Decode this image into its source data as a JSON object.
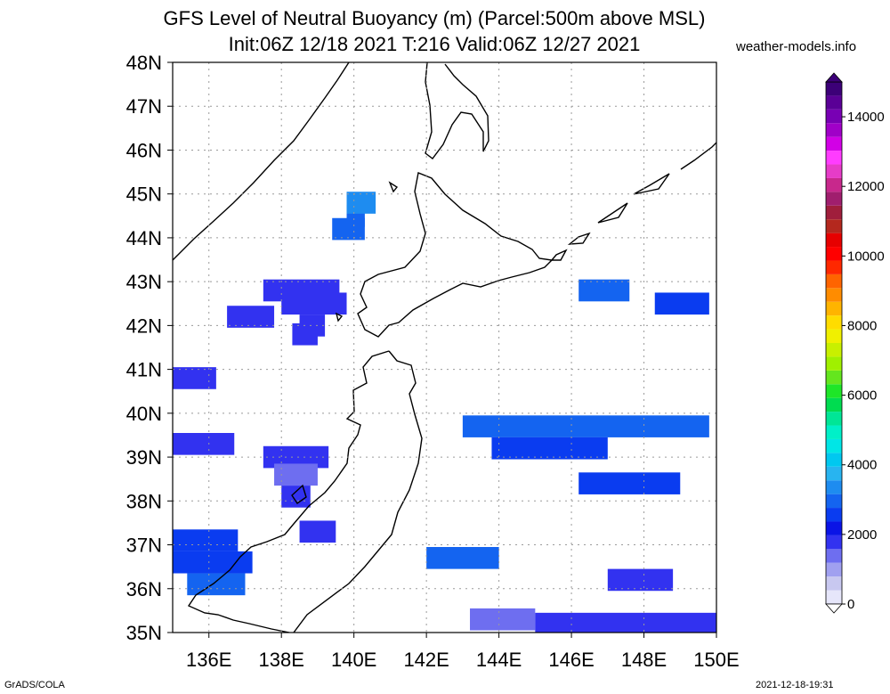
{
  "header": {
    "title_line1": "GFS Level of Neutral Buoyancy (m) (Parcel:500m above MSL)",
    "title_line2": "Init:06Z 12/18 2021 T:216 Valid:06Z 12/27 2021",
    "site": "weather-models.info"
  },
  "footer": {
    "left": "GrADS/COLA",
    "right": "2021-12-18-19:31"
  },
  "chart_data": {
    "type": "heatmap",
    "title": "GFS Level of Neutral Buoyancy (m) (Parcel:500m above MSL)",
    "subtitle": "Init:06Z 12/18 2021 T:216 Valid:06Z 12/27 2021",
    "xlim": [
      135,
      150
    ],
    "ylim": [
      35,
      48
    ],
    "x_ticks": [
      "136E",
      "138E",
      "140E",
      "142E",
      "144E",
      "146E",
      "148E",
      "150E"
    ],
    "y_ticks": [
      "35N",
      "36N",
      "37N",
      "38N",
      "39N",
      "40N",
      "41N",
      "42N",
      "43N",
      "44N",
      "45N",
      "46N",
      "47N",
      "48N"
    ],
    "grid": true,
    "colorbar": {
      "range": [
        0,
        15000
      ],
      "tick_labels": [
        "0",
        "2000",
        "4000",
        "6000",
        "8000",
        "10000",
        "12000",
        "14000"
      ],
      "colors": [
        "#e6e6fa",
        "#c8c8f0",
        "#a0a0f0",
        "#6e6ef0",
        "#3232f0",
        "#0a14e6",
        "#0a3cf0",
        "#1464f0",
        "#1e8cf0",
        "#28b4f0",
        "#00c8f0",
        "#00e6e6",
        "#00f0c8",
        "#00e696",
        "#00dc50",
        "#1ee628",
        "#64e61e",
        "#a0f000",
        "#c8f000",
        "#f0f000",
        "#ffdc00",
        "#ffb400",
        "#ff8c00",
        "#ff6400",
        "#ff2800",
        "#ff0000",
        "#e60000",
        "#b4281e",
        "#a01e3c",
        "#a01e6e",
        "#c8288c",
        "#e63cc8",
        "#ff3cff",
        "#d200e6",
        "#a000c8",
        "#7800b4",
        "#5a0096",
        "#3c0078"
      ]
    },
    "cells": [
      {
        "lat": 44.5,
        "lon": [
          139.8,
          140.3
        ],
        "value": 3000
      },
      {
        "lat": 44.8,
        "lon": [
          139.8,
          140.6
        ],
        "value": 3500
      },
      {
        "lat": 44.2,
        "lon": [
          139.4,
          140.3
        ],
        "value": 2800
      },
      {
        "lat": 42.5,
        "lon": [
          138.0,
          139.8
        ],
        "value": 1800
      },
      {
        "lat": 42.8,
        "lon": [
          137.5,
          139.6
        ],
        "value": 1600
      },
      {
        "lat": 42.2,
        "lon": [
          136.5,
          137.8
        ],
        "value": 1700
      },
      {
        "lat": 42.0,
        "lon": [
          138.5,
          139.2
        ],
        "value": 1900
      },
      {
        "lat": 41.8,
        "lon": [
          138.3,
          139.0
        ],
        "value": 1800
      },
      {
        "lat": 40.8,
        "lon": [
          135.0,
          136.2
        ],
        "value": 1700
      },
      {
        "lat": 39.3,
        "lon": [
          135.0,
          136.7
        ],
        "value": 1800
      },
      {
        "lat": 39.0,
        "lon": [
          137.5,
          139.3
        ],
        "value": 1600
      },
      {
        "lat": 38.6,
        "lon": [
          137.8,
          139.0
        ],
        "value": 1500
      },
      {
        "lat": 38.1,
        "lon": [
          138.0,
          138.8
        ],
        "value": 1600
      },
      {
        "lat": 37.3,
        "lon": [
          138.5,
          139.5
        ],
        "value": 1700
      },
      {
        "lat": 37.1,
        "lon": [
          135.0,
          136.8
        ],
        "value": 2400
      },
      {
        "lat": 36.6,
        "lon": [
          135.0,
          137.2
        ],
        "value": 2600
      },
      {
        "lat": 36.1,
        "lon": [
          135.4,
          137.0
        ],
        "value": 2800
      },
      {
        "lat": 39.7,
        "lon": [
          143.0,
          149.8
        ],
        "value": 2800
      },
      {
        "lat": 39.2,
        "lon": [
          143.8,
          147.0
        ],
        "value": 2700
      },
      {
        "lat": 38.4,
        "lon": [
          146.2,
          149.0
        ],
        "value": 2600
      },
      {
        "lat": 42.5,
        "lon": [
          148.3,
          149.8
        ],
        "value": 2700
      },
      {
        "lat": 42.8,
        "lon": [
          146.2,
          147.6
        ],
        "value": 3000
      },
      {
        "lat": 36.7,
        "lon": [
          142.0,
          144.0
        ],
        "value": 2800
      },
      {
        "lat": 35.3,
        "lon": [
          143.2,
          145.0
        ],
        "value": 1300
      },
      {
        "lat": 35.2,
        "lon": [
          145.0,
          150.0
        ],
        "value": 1700
      },
      {
        "lat": 36.2,
        "lon": [
          147.0,
          148.8
        ],
        "value": 1800
      }
    ]
  }
}
